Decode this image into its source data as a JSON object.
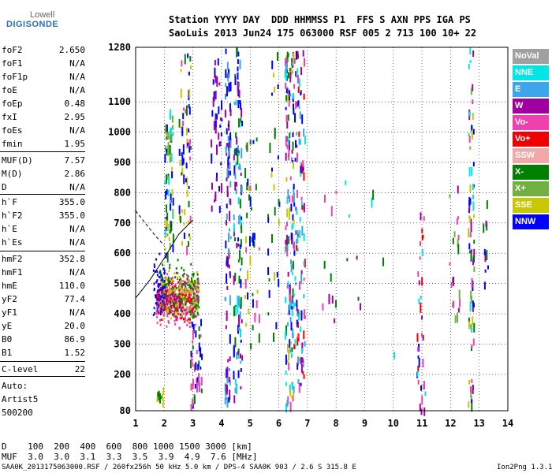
{
  "logo": {
    "top": "Lowell",
    "bottom": "DIGISONDE"
  },
  "header": {
    "row1": "Station YYYY DAY  DDD HHMMSS P1  FFS S AXN PPS IGA PS",
    "row2": "SaoLuis 2013 Jun24 175 063000 RSF 005 2 713 100 10+ 22"
  },
  "params": [
    {
      "k": "foF2",
      "v": "2.650"
    },
    {
      "k": "foF1",
      "v": "N/A"
    },
    {
      "k": "foF1p",
      "v": "N/A"
    },
    {
      "k": "foE",
      "v": "N/A"
    },
    {
      "k": "foEp",
      "v": "0.48"
    },
    {
      "k": "fxI",
      "v": "2.95"
    },
    {
      "k": "foEs",
      "v": "N/A"
    },
    {
      "k": "fmin",
      "v": "1.95"
    },
    {
      "k": "MUF(D)",
      "v": "7.57"
    },
    {
      "k": "M(D)",
      "v": "2.86"
    },
    {
      "k": "D",
      "v": "N/A"
    },
    {
      "k": "h`F",
      "v": "355.0"
    },
    {
      "k": "h`F2",
      "v": "355.0"
    },
    {
      "k": "h`E",
      "v": "N/A"
    },
    {
      "k": "h`Es",
      "v": "N/A"
    },
    {
      "k": "hmF2",
      "v": "352.8"
    },
    {
      "k": "hmF1",
      "v": "N/A"
    },
    {
      "k": "hmE",
      "v": "110.0"
    },
    {
      "k": "yF2",
      "v": "77.4"
    },
    {
      "k": "yF1",
      "v": "N/A"
    },
    {
      "k": "yE",
      "v": "20.0"
    },
    {
      "k": "B0",
      "v": "86.9"
    },
    {
      "k": "B1",
      "v": "1.52"
    },
    {
      "k": "C-level",
      "v": "22"
    }
  ],
  "auto": {
    "l1": "Auto:",
    "l2": "Artist5",
    "l3": "500200"
  },
  "legend": [
    {
      "label": "NoVal",
      "color": "#a0a0a0"
    },
    {
      "label": "NNE",
      "color": "#00e6e6"
    },
    {
      "label": "E",
      "color": "#3da5ea"
    },
    {
      "label": "W",
      "color": "#a000a0"
    },
    {
      "label": "Vo-",
      "color": "#f040b0"
    },
    {
      "label": "Vo+",
      "color": "#f00000"
    },
    {
      "label": "SSW",
      "color": "#f0a8a8"
    },
    {
      "label": "X-",
      "color": "#008000"
    },
    {
      "label": "X+",
      "color": "#70b040"
    },
    {
      "label": "SSE",
      "color": "#c8c800"
    },
    {
      "label": "NNW",
      "color": "#0000ff"
    }
  ],
  "footer": {
    "d_row": "D    100  200  400  600  800 1000 1500 3000 [km]",
    "muf_row": "MUF  3.0  3.0  3.1  3.3  3.5  3.9  4.9  7.6 [MHz]",
    "info": "SAA0K_2013175063000.RSF / 260fx256h 50 kHz 5.0 km / DPS-4 SAA0K 903 / 2.6 S 315.8 E",
    "version": "Ion2Png 1.3.17"
  },
  "chart_data": {
    "type": "scatter",
    "xlim": [
      1,
      14
    ],
    "ylim": [
      80,
      1280
    ],
    "x_ticks": [
      1,
      2,
      3,
      4,
      5,
      6,
      7,
      8,
      9,
      10,
      11,
      12,
      13,
      14
    ],
    "y_ticks": [
      80,
      200,
      300,
      400,
      500,
      600,
      700,
      800,
      900,
      1000,
      1100,
      1280
    ],
    "grid": true,
    "layout_note": "",
    "clusters": [
      {
        "color": "#f040b0",
        "x": [
          1.7,
          3.2
        ],
        "y": [
          340,
          560
        ],
        "n": 380
      },
      {
        "color": "#f00000",
        "x": [
          1.7,
          3.0
        ],
        "y": [
          360,
          540
        ],
        "n": 160
      },
      {
        "color": "#008000",
        "x": [
          1.8,
          3.2
        ],
        "y": [
          330,
          600
        ],
        "n": 160
      },
      {
        "color": "#c8c800",
        "x": [
          1.8,
          3.2
        ],
        "y": [
          340,
          580
        ],
        "n": 120
      },
      {
        "color": "#0000ff",
        "x": [
          1.6,
          2.0
        ],
        "y": [
          340,
          620
        ],
        "n": 60
      },
      {
        "color": "#a000a0",
        "x": [
          1.7,
          2.6
        ],
        "y": [
          360,
          520
        ],
        "n": 50
      }
    ],
    "columns": [
      {
        "x": [
          1.7,
          1.95
        ],
        "y": [
          120,
          160
        ],
        "n": 10,
        "colors": [
          "#c8c800",
          "#008000"
        ]
      },
      {
        "x": [
          2.0,
          2.3
        ],
        "y": [
          600,
          1100
        ],
        "n": 70,
        "colors": [
          "#0000ff",
          "#008000",
          "#c8c800",
          "#70b040",
          "#00e6e6"
        ]
      },
      {
        "x": [
          2.5,
          2.9
        ],
        "y": [
          620,
          1260
        ],
        "n": 60,
        "colors": [
          "#0000ff",
          "#008000",
          "#f040b0",
          "#c8c800"
        ]
      },
      {
        "x": [
          2.9,
          3.3
        ],
        "y": [
          100,
          400
        ],
        "n": 40,
        "colors": [
          "#0000ff",
          "#f040b0",
          "#008000"
        ]
      },
      {
        "x": [
          3.6,
          4.0
        ],
        "y": [
          720,
          1270
        ],
        "n": 40,
        "colors": [
          "#0000ff",
          "#a000a0"
        ]
      },
      {
        "x": [
          4.1,
          4.3
        ],
        "y": [
          120,
          1280
        ],
        "n": 90,
        "colors": [
          "#0000ff",
          "#a000a0",
          "#3da5ea"
        ]
      },
      {
        "x": [
          4.4,
          4.7
        ],
        "y": [
          130,
          1280
        ],
        "n": 110,
        "colors": [
          "#0000ff",
          "#3da5ea",
          "#00e6e6",
          "#008000",
          "#a000a0"
        ]
      },
      {
        "x": [
          4.8,
          5.3
        ],
        "y": [
          300,
          1000
        ],
        "n": 40,
        "colors": [
          "#0000ff",
          "#008000",
          "#c8c800",
          "#f040b0"
        ]
      },
      {
        "x": [
          5.6,
          6.0
        ],
        "y": [
          300,
          1280
        ],
        "n": 30,
        "colors": [
          "#0000ff",
          "#008000",
          "#c8c800"
        ]
      },
      {
        "x": [
          6.2,
          6.5
        ],
        "y": [
          100,
          1280
        ],
        "n": 140,
        "colors": [
          "#3da5ea",
          "#00e6e6",
          "#0000ff",
          "#a000a0",
          "#008000",
          "#f040b0",
          "#c8c800"
        ]
      },
      {
        "x": [
          6.5,
          6.9
        ],
        "y": [
          150,
          1280
        ],
        "n": 110,
        "colors": [
          "#0000ff",
          "#3da5ea",
          "#00e6e6",
          "#f040b0",
          "#a000a0",
          "#f00000"
        ]
      },
      {
        "x": [
          7.5,
          8.0
        ],
        "y": [
          380,
          820
        ],
        "n": 10,
        "colors": [
          "#a000a0",
          "#008000",
          "#f040b0"
        ]
      },
      {
        "x": [
          8.3,
          10.2
        ],
        "y": [
          200,
          980
        ],
        "n": 10,
        "colors": [
          "#a000a0",
          "#00e6e6",
          "#008000"
        ]
      },
      {
        "x": [
          10.8,
          11.1
        ],
        "y": [
          80,
          750
        ],
        "n": 35,
        "colors": [
          "#a000a0",
          "#f040b0",
          "#0000ff",
          "#f00000",
          "#00e6e6"
        ]
      },
      {
        "x": [
          11.9,
          12.3
        ],
        "y": [
          380,
          840
        ],
        "n": 20,
        "colors": [
          "#008000",
          "#a000a0",
          "#f040b0",
          "#70b040"
        ]
      },
      {
        "x": [
          12.6,
          12.8
        ],
        "y": [
          90,
          1280
        ],
        "n": 80,
        "colors": [
          "#c8c800",
          "#0000ff",
          "#008000",
          "#70b040",
          "#f040b0",
          "#a000a0",
          "#00e6e6"
        ]
      },
      {
        "x": [
          13.1,
          13.3
        ],
        "y": [
          500,
          820
        ],
        "n": 10,
        "colors": [
          "#a000a0",
          "#008000",
          "#0000ff"
        ]
      }
    ],
    "curve_solid": [
      [
        1,
        0.31
      ],
      [
        1.5,
        0.36
      ],
      [
        2.0,
        0.42
      ],
      [
        2.5,
        0.485
      ],
      [
        3.0,
        0.525
      ]
    ],
    "curve_dashed": [
      [
        1,
        0.55
      ],
      [
        1.3,
        0.52
      ],
      [
        1.7,
        0.48
      ],
      [
        2.0,
        0.455
      ]
    ]
  }
}
